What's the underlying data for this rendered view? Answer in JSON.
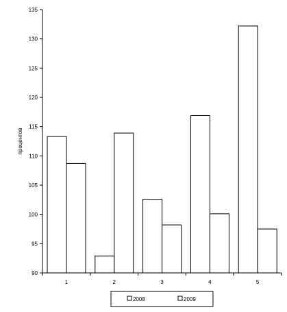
{
  "chart_data": {
    "type": "bar",
    "categories": [
      "1",
      "2",
      "3",
      "4",
      "5"
    ],
    "series": [
      {
        "name": "2008",
        "values": [
          113.3,
          92.9,
          102.6,
          116.9,
          132.2
        ],
        "fill": "#ffffff"
      },
      {
        "name": "2009",
        "values": [
          108.7,
          113.9,
          98.2,
          100.1,
          97.5
        ],
        "fill": "#ffffff"
      }
    ],
    "title": "",
    "xlabel": "",
    "ylabel": "процентов",
    "ylim": [
      90,
      135
    ],
    "yticks": [
      90,
      95,
      100,
      105,
      110,
      115,
      120,
      125,
      130,
      135
    ],
    "grid": false,
    "legend_position": "bottom"
  }
}
